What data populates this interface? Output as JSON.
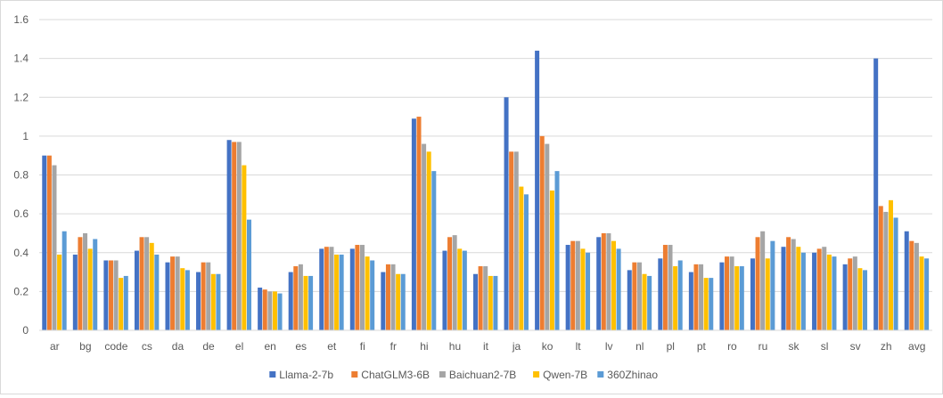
{
  "chart_data": {
    "type": "bar",
    "title": "",
    "xlabel": "",
    "ylabel": "",
    "ylim": [
      0,
      1.6
    ],
    "yticks": [
      "0",
      "0.2",
      "0.4",
      "0.6",
      "0.8",
      "1",
      "1.2",
      "1.4",
      "1.6"
    ],
    "grid": true,
    "legend_position": "bottom",
    "categories": [
      "ar",
      "bg",
      "code",
      "cs",
      "da",
      "de",
      "el",
      "en",
      "es",
      "et",
      "fi",
      "fr",
      "hi",
      "hu",
      "it",
      "ja",
      "ko",
      "lt",
      "lv",
      "nl",
      "pl",
      "pt",
      "ro",
      "ru",
      "sk",
      "sl",
      "sv",
      "zh",
      "avg"
    ],
    "series": [
      {
        "name": "Llama-2-7b",
        "color": "#4472c4",
        "values": [
          0.9,
          0.39,
          0.36,
          0.41,
          0.35,
          0.3,
          0.98,
          0.22,
          0.3,
          0.42,
          0.42,
          0.3,
          1.09,
          0.41,
          0.29,
          1.2,
          1.44,
          0.44,
          0.48,
          0.31,
          0.37,
          0.3,
          0.35,
          0.37,
          0.43,
          0.4,
          0.34,
          1.4,
          0.51
        ]
      },
      {
        "name": "ChatGLM3-6B",
        "color": "#ed7d31",
        "values": [
          0.9,
          0.48,
          0.36,
          0.48,
          0.38,
          0.35,
          0.97,
          0.21,
          0.33,
          0.43,
          0.44,
          0.34,
          1.1,
          0.48,
          0.33,
          0.92,
          1.0,
          0.46,
          0.5,
          0.35,
          0.44,
          0.34,
          0.38,
          0.48,
          0.48,
          0.42,
          0.37,
          0.64,
          0.46
        ]
      },
      {
        "name": "Baichuan2-7B",
        "color": "#a5a5a5",
        "values": [
          0.85,
          0.5,
          0.36,
          0.48,
          0.38,
          0.35,
          0.97,
          0.2,
          0.34,
          0.43,
          0.44,
          0.34,
          0.96,
          0.49,
          0.33,
          0.92,
          0.96,
          0.46,
          0.5,
          0.35,
          0.44,
          0.34,
          0.38,
          0.51,
          0.47,
          0.43,
          0.38,
          0.61,
          0.45
        ]
      },
      {
        "name": "Qwen-7B",
        "color": "#ffc000",
        "values": [
          0.39,
          0.42,
          0.27,
          0.45,
          0.32,
          0.29,
          0.85,
          0.2,
          0.28,
          0.39,
          0.38,
          0.29,
          0.92,
          0.42,
          0.28,
          0.74,
          0.72,
          0.42,
          0.46,
          0.29,
          0.33,
          0.27,
          0.33,
          0.37,
          0.43,
          0.39,
          0.32,
          0.67,
          0.38
        ]
      },
      {
        "name": "360Zhinao",
        "color": "#5b9bd5",
        "values": [
          0.51,
          0.47,
          0.28,
          0.39,
          0.31,
          0.29,
          0.57,
          0.19,
          0.28,
          0.39,
          0.36,
          0.29,
          0.82,
          0.41,
          0.28,
          0.7,
          0.82,
          0.4,
          0.42,
          0.28,
          0.36,
          0.27,
          0.33,
          0.46,
          0.4,
          0.38,
          0.31,
          0.58,
          0.37
        ]
      }
    ]
  }
}
